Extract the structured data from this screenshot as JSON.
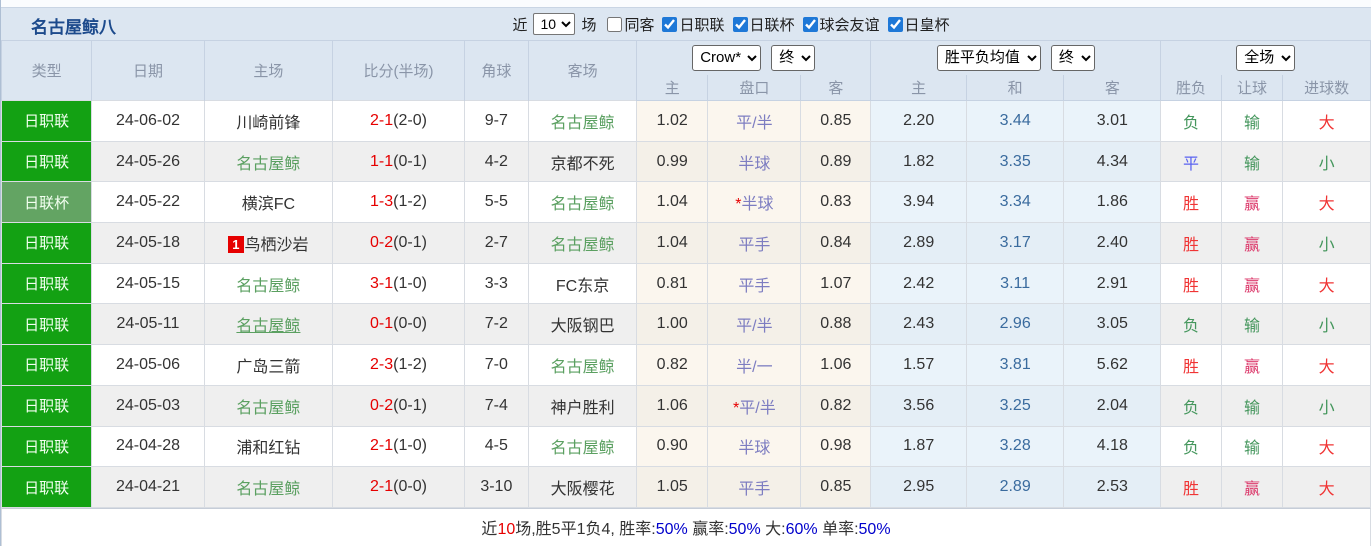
{
  "title": "名古屋鲸八",
  "controls": {
    "recent_label": "近",
    "matches_count": "10",
    "matches_label": "场",
    "checkboxes": [
      {
        "label": "同客",
        "checked": false
      },
      {
        "label": "日职联",
        "checked": true
      },
      {
        "label": "日联杯",
        "checked": true
      },
      {
        "label": "球会友谊",
        "checked": true
      },
      {
        "label": "日皇杯",
        "checked": true
      }
    ]
  },
  "header": {
    "static_cols": [
      "类型",
      "日期",
      "主场",
      "比分(半场)",
      "角球",
      "客场"
    ],
    "groups": [
      {
        "selects": [
          "Crow*",
          "终"
        ],
        "cols": [
          "主",
          "盘口",
          "客"
        ]
      },
      {
        "selects": [
          "胜平负均值",
          "终"
        ],
        "cols": [
          "主",
          "和",
          "客"
        ]
      },
      {
        "selects": [
          "全场"
        ],
        "cols": [
          "胜负",
          "让球",
          "进球数"
        ]
      }
    ]
  },
  "rows": [
    {
      "type": "日职联",
      "type_class": "lg-league",
      "date": "24-06-02",
      "home": "川崎前锋",
      "home_is_team": false,
      "home_badge": "",
      "home_underline": false,
      "score": "2-1",
      "half": "(2-0)",
      "corners": "9-7",
      "away": "名古屋鲸",
      "away_is_team": true,
      "odds_home": "1.02",
      "handicap": "平/半",
      "handicap_star": false,
      "odds_away": "0.85",
      "avg_home": "2.20",
      "avg_draw": "3.44",
      "avg_away": "3.01",
      "result": "负",
      "result_color": "t-green",
      "let_result": "输",
      "let_color": "t-green",
      "goals": "大",
      "goals_color": "t-red"
    },
    {
      "type": "日职联",
      "type_class": "lg-league",
      "date": "24-05-26",
      "home": "名古屋鲸",
      "home_is_team": true,
      "home_badge": "",
      "home_underline": false,
      "score": "1-1",
      "half": "(0-1)",
      "corners": "4-2",
      "away": "京都不死",
      "away_is_team": false,
      "odds_home": "0.99",
      "handicap": "半球",
      "handicap_star": false,
      "odds_away": "0.89",
      "avg_home": "1.82",
      "avg_draw": "3.35",
      "avg_away": "4.34",
      "result": "平",
      "result_color": "t-blue",
      "let_result": "输",
      "let_color": "t-green",
      "goals": "小",
      "goals_color": "t-green"
    },
    {
      "type": "日联杯",
      "type_class": "lg-cup",
      "date": "24-05-22",
      "home": "横滨FC",
      "home_is_team": false,
      "home_badge": "",
      "home_underline": false,
      "score": "1-3",
      "half": "(1-2)",
      "corners": "5-5",
      "away": "名古屋鲸",
      "away_is_team": true,
      "odds_home": "1.04",
      "handicap": "半球",
      "handicap_star": true,
      "odds_away": "0.83",
      "avg_home": "3.94",
      "avg_draw": "3.34",
      "avg_away": "1.86",
      "result": "胜",
      "result_color": "t-red",
      "let_result": "赢",
      "let_color": "t-crimson",
      "goals": "大",
      "goals_color": "t-red"
    },
    {
      "type": "日职联",
      "type_class": "lg-league",
      "date": "24-05-18",
      "home": "鸟栖沙岩",
      "home_is_team": false,
      "home_badge": "1",
      "home_underline": false,
      "score": "0-2",
      "half": "(0-1)",
      "corners": "2-7",
      "away": "名古屋鲸",
      "away_is_team": true,
      "odds_home": "1.04",
      "handicap": "平手",
      "handicap_star": false,
      "odds_away": "0.84",
      "avg_home": "2.89",
      "avg_draw": "3.17",
      "avg_away": "2.40",
      "result": "胜",
      "result_color": "t-red",
      "let_result": "赢",
      "let_color": "t-crimson",
      "goals": "小",
      "goals_color": "t-green"
    },
    {
      "type": "日职联",
      "type_class": "lg-league",
      "date": "24-05-15",
      "home": "名古屋鲸",
      "home_is_team": true,
      "home_badge": "",
      "home_underline": false,
      "score": "3-1",
      "half": "(1-0)",
      "corners": "3-3",
      "away": "FC东京",
      "away_is_team": false,
      "odds_home": "0.81",
      "handicap": "平手",
      "handicap_star": false,
      "odds_away": "1.07",
      "avg_home": "2.42",
      "avg_draw": "3.11",
      "avg_away": "2.91",
      "result": "胜",
      "result_color": "t-red",
      "let_result": "赢",
      "let_color": "t-crimson",
      "goals": "大",
      "goals_color": "t-red"
    },
    {
      "type": "日职联",
      "type_class": "lg-league",
      "date": "24-05-11",
      "home": "名古屋鲸",
      "home_is_team": true,
      "home_badge": "",
      "home_underline": true,
      "score": "0-1",
      "half": "(0-0)",
      "corners": "7-2",
      "away": "大阪钢巴",
      "away_is_team": false,
      "odds_home": "1.00",
      "handicap": "平/半",
      "handicap_star": false,
      "odds_away": "0.88",
      "avg_home": "2.43",
      "avg_draw": "2.96",
      "avg_away": "3.05",
      "result": "负",
      "result_color": "t-green",
      "let_result": "输",
      "let_color": "t-green",
      "goals": "小",
      "goals_color": "t-green"
    },
    {
      "type": "日职联",
      "type_class": "lg-league",
      "date": "24-05-06",
      "home": "广岛三箭",
      "home_is_team": false,
      "home_badge": "",
      "home_underline": false,
      "score": "2-3",
      "half": "(1-2)",
      "corners": "7-0",
      "away": "名古屋鲸",
      "away_is_team": true,
      "odds_home": "0.82",
      "handicap": "半/一",
      "handicap_star": false,
      "odds_away": "1.06",
      "avg_home": "1.57",
      "avg_draw": "3.81",
      "avg_away": "5.62",
      "result": "胜",
      "result_color": "t-red",
      "let_result": "赢",
      "let_color": "t-crimson",
      "goals": "大",
      "goals_color": "t-red"
    },
    {
      "type": "日职联",
      "type_class": "lg-league",
      "date": "24-05-03",
      "home": "名古屋鲸",
      "home_is_team": true,
      "home_badge": "",
      "home_underline": false,
      "score": "0-2",
      "half": "(0-1)",
      "corners": "7-4",
      "away": "神户胜利",
      "away_is_team": false,
      "odds_home": "1.06",
      "handicap": "平/半",
      "handicap_star": true,
      "odds_away": "0.82",
      "avg_home": "3.56",
      "avg_draw": "3.25",
      "avg_away": "2.04",
      "result": "负",
      "result_color": "t-green",
      "let_result": "输",
      "let_color": "t-green",
      "goals": "小",
      "goals_color": "t-green"
    },
    {
      "type": "日职联",
      "type_class": "lg-league",
      "date": "24-04-28",
      "home": "浦和红钻",
      "home_is_team": false,
      "home_badge": "",
      "home_underline": false,
      "score": "2-1",
      "half": "(1-0)",
      "corners": "4-5",
      "away": "名古屋鲸",
      "away_is_team": true,
      "odds_home": "0.90",
      "handicap": "半球",
      "handicap_star": false,
      "odds_away": "0.98",
      "avg_home": "1.87",
      "avg_draw": "3.28",
      "avg_away": "4.18",
      "result": "负",
      "result_color": "t-green",
      "let_result": "输",
      "let_color": "t-green",
      "goals": "大",
      "goals_color": "t-red"
    },
    {
      "type": "日职联",
      "type_class": "lg-league",
      "date": "24-04-21",
      "home": "名古屋鲸",
      "home_is_team": true,
      "home_badge": "",
      "home_underline": false,
      "score": "2-1",
      "half": "(0-0)",
      "corners": "3-10",
      "away": "大阪樱花",
      "away_is_team": false,
      "odds_home": "1.05",
      "handicap": "平手",
      "handicap_star": false,
      "odds_away": "0.85",
      "avg_home": "2.95",
      "avg_draw": "2.89",
      "avg_away": "2.53",
      "result": "胜",
      "result_color": "t-red",
      "let_result": "赢",
      "let_color": "t-crimson",
      "goals": "大",
      "goals_color": "t-red"
    }
  ],
  "footer": {
    "segments": [
      {
        "text": "近",
        "color": "f-black"
      },
      {
        "text": "10",
        "color": "f-red"
      },
      {
        "text": "场,胜5平1负4, 胜率:",
        "color": "f-black"
      },
      {
        "text": "50%",
        "color": "f-blue"
      },
      {
        "text": " 赢率:",
        "color": "f-black"
      },
      {
        "text": "50%",
        "color": "f-blue"
      },
      {
        "text": " 大:",
        "color": "f-black"
      },
      {
        "text": "60%",
        "color": "f-blue"
      },
      {
        "text": " 单率:",
        "color": "f-black"
      },
      {
        "text": "50%",
        "color": "f-blue"
      }
    ]
  }
}
